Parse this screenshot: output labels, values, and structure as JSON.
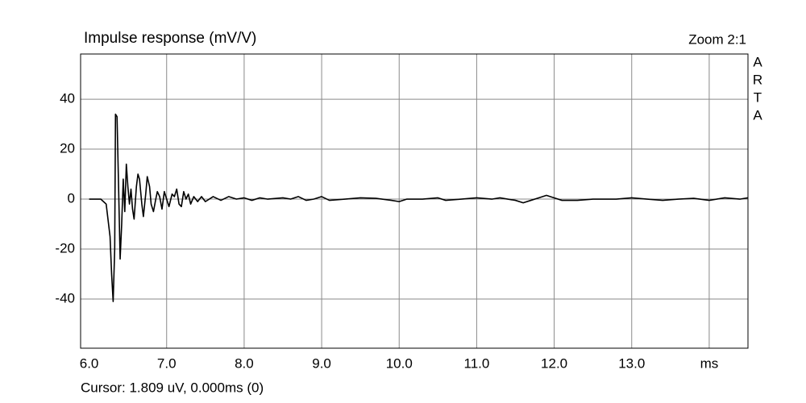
{
  "chart_data": {
    "type": "line",
    "title": "Impulse response (mV/V)",
    "zoom_label": "Zoom 2:1",
    "brand": [
      "A",
      "R",
      "T",
      "A"
    ],
    "cursor_text": "Cursor: 1.809 uV, 0.000ms (0)",
    "xlim": [
      5.89,
      14.5
    ],
    "ylim": [
      -59.7,
      58.1
    ],
    "xticks": [
      {
        "value": 6,
        "label": "6.0"
      },
      {
        "value": 7,
        "label": "7.0"
      },
      {
        "value": 8,
        "label": "8.0"
      },
      {
        "value": 9,
        "label": "9.0"
      },
      {
        "value": 10,
        "label": "10.0"
      },
      {
        "value": 11,
        "label": "11.0"
      },
      {
        "value": 12,
        "label": "12.0"
      },
      {
        "value": 13,
        "label": "13.0"
      },
      {
        "value": 14,
        "label": "ms"
      }
    ],
    "yticks": [
      -40,
      -20,
      0,
      20,
      40
    ],
    "grid": true,
    "x": [
      6.0,
      6.15,
      6.22,
      6.27,
      6.29,
      6.31,
      6.33,
      6.34,
      6.36,
      6.38,
      6.4,
      6.42,
      6.44,
      6.46,
      6.48,
      6.5,
      6.52,
      6.54,
      6.56,
      6.58,
      6.61,
      6.63,
      6.65,
      6.68,
      6.7,
      6.73,
      6.75,
      6.78,
      6.8,
      6.83,
      6.86,
      6.88,
      6.91,
      6.94,
      6.97,
      7.0,
      7.03,
      7.07,
      7.1,
      7.13,
      7.16,
      7.19,
      7.22,
      7.25,
      7.28,
      7.31,
      7.35,
      7.4,
      7.45,
      7.5,
      7.6,
      7.7,
      7.8,
      7.9,
      8.0,
      8.1,
      8.2,
      8.3,
      8.5,
      8.6,
      8.7,
      8.8,
      8.9,
      9.0,
      9.1,
      9.3,
      9.5,
      9.7,
      9.9,
      10.0,
      10.1,
      10.3,
      10.5,
      10.6,
      10.8,
      11.0,
      11.2,
      11.3,
      11.5,
      11.6,
      11.7,
      11.8,
      11.9,
      12.0,
      12.1,
      12.3,
      12.5,
      12.8,
      13.0,
      13.2,
      13.4,
      13.6,
      13.8,
      14.0,
      14.2,
      14.4,
      14.5
    ],
    "series": [
      {
        "name": "Impulse response",
        "color": "#000000",
        "values": [
          0,
          0,
          -2,
          -15,
          -30,
          -41,
          -20,
          34,
          33,
          5,
          -24,
          -10,
          8,
          -5,
          14,
          5,
          -2,
          4,
          -4,
          -8,
          5,
          10,
          8,
          -2,
          -7,
          2,
          9,
          5,
          -2,
          -5,
          0,
          3,
          1,
          -4,
          3,
          0,
          -3,
          2,
          1,
          4,
          -2,
          -3,
          3,
          0,
          2,
          -2,
          1,
          -1,
          1,
          -1,
          1,
          -0.5,
          1,
          0,
          0.5,
          -0.5,
          0.5,
          0,
          0.5,
          0,
          1,
          -0.5,
          0,
          1,
          -0.5,
          0,
          0.5,
          0.3,
          -0.5,
          -1,
          0,
          0,
          0.5,
          -0.5,
          0,
          0.5,
          0,
          0.5,
          -0.5,
          -1.5,
          -0.5,
          0.5,
          1.5,
          0.5,
          -0.5,
          -0.5,
          0,
          0,
          0.5,
          0,
          -0.5,
          0,
          0.3,
          -0.5,
          0.5,
          0,
          0.5
        ]
      }
    ]
  }
}
